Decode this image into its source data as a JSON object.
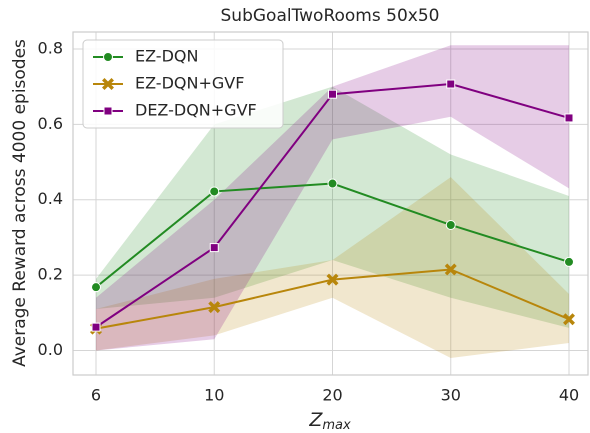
{
  "chart_data": {
    "type": "line",
    "title": "SubGoalTwoRooms 50x50",
    "ylabel": "Average Reward across 4000 episodes",
    "xlabel": "Z",
    "xlabel_subscript": "max",
    "categories": [
      "6",
      "10",
      "20",
      "30",
      "40"
    ],
    "ylim": [
      -0.065,
      0.845
    ],
    "yticks": [
      {
        "value": 0.0,
        "label": "0.0"
      },
      0.2,
      0.4,
      0.6,
      0.8
    ],
    "grid": true,
    "legend": "upper left",
    "series": [
      {
        "name": "EZ-DQN",
        "color": "#228b22",
        "marker": "circle",
        "values": [
          0.168,
          0.422,
          0.443,
          0.333,
          0.235
        ],
        "lower": [
          0.11,
          0.14,
          0.24,
          0.14,
          0.06
        ],
        "upper": [
          0.19,
          0.6,
          0.7,
          0.52,
          0.41
        ]
      },
      {
        "name": "EZ-DQN+GVF",
        "color": "#b8860b",
        "marker": "x",
        "values": [
          0.058,
          0.115,
          0.188,
          0.215,
          0.083
        ],
        "lower": [
          0.0,
          0.04,
          0.14,
          -0.02,
          0.02
        ],
        "upper": [
          0.11,
          0.19,
          0.24,
          0.46,
          0.15
        ]
      },
      {
        "name": "DEZ-DQN+GVF",
        "color": "#800080",
        "marker": "square",
        "values": [
          0.062,
          0.273,
          0.68,
          0.707,
          0.617
        ],
        "lower": [
          0.0,
          0.03,
          0.56,
          0.62,
          0.43
        ],
        "upper": [
          0.14,
          0.4,
          0.7,
          0.81,
          0.81
        ]
      }
    ]
  }
}
